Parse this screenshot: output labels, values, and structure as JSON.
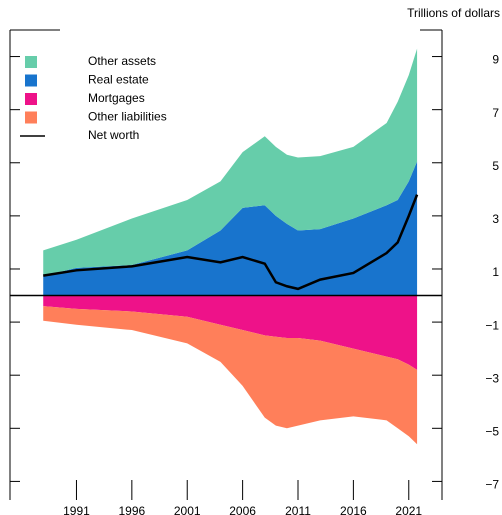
{
  "chart_data": {
    "type": "area",
    "units_label": "Trillions of dollars",
    "x": [
      1988,
      1991,
      1996,
      2001,
      2004,
      2006,
      2008,
      2009,
      2010,
      2011,
      2013,
      2016,
      2019,
      2020,
      2021,
      2021.75
    ],
    "series": [
      {
        "name": "Other assets",
        "color": "#66cdaa",
        "values": [
          0.96,
          1.06,
          1.75,
          1.9,
          1.85,
          2.1,
          2.6,
          2.6,
          2.6,
          2.75,
          2.75,
          2.7,
          3.1,
          3.7,
          4.0,
          4.25
        ]
      },
      {
        "name": "Real estate",
        "color": "#1874cd",
        "values": [
          0.74,
          1.04,
          1.15,
          1.7,
          2.45,
          3.3,
          3.4,
          3.0,
          2.7,
          2.45,
          2.5,
          2.9,
          3.4,
          3.6,
          4.3,
          5.05
        ]
      },
      {
        "name": "Mortgages",
        "color": "#ee1289",
        "values": [
          -0.4,
          -0.5,
          -0.6,
          -0.8,
          -1.1,
          -1.3,
          -1.5,
          -1.55,
          -1.6,
          -1.6,
          -1.7,
          -2.0,
          -2.3,
          -2.4,
          -2.6,
          -2.8
        ]
      },
      {
        "name": "Other liabilities",
        "color": "#ff7f5a",
        "values": [
          -0.55,
          -0.6,
          -0.7,
          -1.0,
          -1.4,
          -2.1,
          -3.1,
          -3.35,
          -3.4,
          -3.3,
          -3.0,
          -2.55,
          -2.4,
          -2.6,
          -2.7,
          -2.8
        ]
      },
      {
        "name": "Net worth",
        "color": "#000000",
        "type": "line",
        "values": [
          0.75,
          0.95,
          1.1,
          1.45,
          1.25,
          1.45,
          1.2,
          0.5,
          0.35,
          0.25,
          0.6,
          0.85,
          1.6,
          2.0,
          3.0,
          3.8
        ]
      }
    ],
    "xlim": [
      1985,
      2024
    ],
    "xticks": [
      1991,
      1996,
      2001,
      2006,
      2011,
      2016,
      2021
    ],
    "ylim": [
      -7.7,
      10
    ],
    "yticks": [
      9,
      7,
      5,
      3,
      1,
      {
        "value": -1,
        "label": "−1"
      },
      {
        "value": -3,
        "label": "−3"
      },
      {
        "value": -5,
        "label": "−5"
      },
      {
        "value": -7,
        "label": "−7"
      }
    ],
    "legend": "upper left"
  }
}
